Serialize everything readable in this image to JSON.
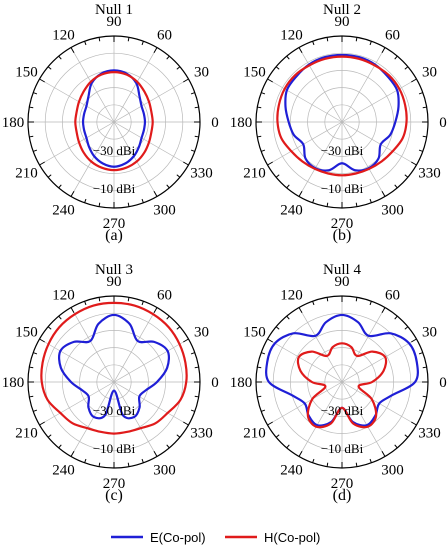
{
  "chart_data": [
    {
      "type": "polar",
      "title": "Null 1",
      "caption": "(a)",
      "angle_ticks": [
        "0",
        "30",
        "60",
        "90",
        "120",
        "150",
        "180",
        "210",
        "240",
        "270",
        "300",
        "330"
      ],
      "radial_labels": [
        "−30 dBi",
        "−10 dBi"
      ],
      "angles_deg": [
        0,
        15,
        30,
        45,
        60,
        75,
        90,
        105,
        120,
        135,
        150,
        165,
        180,
        195,
        210,
        225,
        240,
        255,
        270,
        285,
        300,
        315,
        330,
        345
      ],
      "series": [
        {
          "color": "#1f1fd6",
          "values": [
            0.36,
            0.36,
            0.37,
            0.42,
            0.52,
            0.58,
            0.6,
            0.58,
            0.52,
            0.42,
            0.37,
            0.36,
            0.36,
            0.36,
            0.37,
            0.41,
            0.46,
            0.5,
            0.52,
            0.5,
            0.46,
            0.41,
            0.37,
            0.36
          ]
        },
        {
          "color": "#e01b1b",
          "values": [
            0.45,
            0.45,
            0.47,
            0.5,
            0.54,
            0.57,
            0.58,
            0.57,
            0.54,
            0.5,
            0.47,
            0.45,
            0.45,
            0.45,
            0.47,
            0.5,
            0.53,
            0.55,
            0.56,
            0.55,
            0.53,
            0.5,
            0.47,
            0.45
          ]
        }
      ]
    },
    {
      "type": "polar",
      "title": "Null 2",
      "caption": "(b)",
      "angle_ticks": [
        "0",
        "30",
        "60",
        "90",
        "120",
        "150",
        "180",
        "210",
        "240",
        "270",
        "300",
        "330"
      ],
      "radial_labels": [
        "−30 dBi",
        "−10 dBi"
      ],
      "angles_deg": [
        0,
        15,
        30,
        45,
        60,
        75,
        90,
        105,
        120,
        135,
        150,
        165,
        180,
        195,
        210,
        225,
        240,
        255,
        270,
        285,
        300,
        315,
        330,
        345
      ],
      "series": [
        {
          "color": "#1f1fd6",
          "values": [
            0.62,
            0.68,
            0.74,
            0.75,
            0.77,
            0.78,
            0.78,
            0.78,
            0.77,
            0.75,
            0.74,
            0.68,
            0.62,
            0.58,
            0.52,
            0.6,
            0.62,
            0.58,
            0.48,
            0.58,
            0.62,
            0.6,
            0.52,
            0.58
          ]
        },
        {
          "color": "#e01b1b",
          "values": [
            0.75,
            0.76,
            0.77,
            0.77,
            0.76,
            0.76,
            0.76,
            0.76,
            0.76,
            0.77,
            0.77,
            0.76,
            0.75,
            0.73,
            0.68,
            0.65,
            0.63,
            0.62,
            0.62,
            0.62,
            0.63,
            0.65,
            0.68,
            0.73
          ]
        }
      ]
    },
    {
      "type": "polar",
      "title": "Null 3",
      "caption": "(c)",
      "angle_ticks": [
        "0",
        "30",
        "60",
        "90",
        "120",
        "150",
        "180",
        "210",
        "240",
        "270",
        "300",
        "330"
      ],
      "radial_labels": [
        "−30 dBi",
        "−10 dBi"
      ],
      "angles_deg": [
        0,
        15,
        30,
        45,
        60,
        75,
        90,
        105,
        120,
        135,
        150,
        165,
        180,
        195,
        210,
        225,
        240,
        255,
        270,
        285,
        300,
        315,
        330,
        345
      ],
      "series": [
        {
          "color": "#1f1fd6",
          "values": [
            0.5,
            0.64,
            0.72,
            0.66,
            0.55,
            0.7,
            0.78,
            0.7,
            0.55,
            0.66,
            0.72,
            0.64,
            0.5,
            0.38,
            0.34,
            0.42,
            0.47,
            0.4,
            0.1,
            0.4,
            0.47,
            0.42,
            0.34,
            0.38
          ]
        },
        {
          "color": "#e01b1b",
          "values": [
            0.84,
            0.86,
            0.88,
            0.9,
            0.91,
            0.92,
            0.92,
            0.92,
            0.91,
            0.9,
            0.88,
            0.86,
            0.84,
            0.8,
            0.72,
            0.68,
            0.62,
            0.6,
            0.6,
            0.6,
            0.62,
            0.68,
            0.72,
            0.8
          ]
        }
      ]
    },
    {
      "type": "polar",
      "title": "Null 4",
      "caption": "(d)",
      "angle_ticks": [
        "0",
        "30",
        "60",
        "90",
        "120",
        "150",
        "180",
        "210",
        "240",
        "270",
        "300",
        "330"
      ],
      "radial_labels": [
        "−30 dBi",
        "−10 dBi"
      ],
      "angles_deg": [
        0,
        15,
        30,
        45,
        60,
        75,
        90,
        105,
        120,
        135,
        150,
        165,
        180,
        195,
        210,
        225,
        240,
        255,
        270,
        285,
        300,
        315,
        330,
        345
      ],
      "series": [
        {
          "color": "#1f1fd6",
          "values": [
            0.85,
            0.9,
            0.9,
            0.8,
            0.62,
            0.72,
            0.78,
            0.72,
            0.62,
            0.8,
            0.9,
            0.9,
            0.85,
            0.6,
            0.5,
            0.55,
            0.58,
            0.48,
            0.3,
            0.48,
            0.58,
            0.55,
            0.5,
            0.6
          ]
        },
        {
          "color": "#e01b1b",
          "values": [
            0.35,
            0.5,
            0.58,
            0.5,
            0.35,
            0.42,
            0.45,
            0.42,
            0.35,
            0.5,
            0.58,
            0.5,
            0.35,
            0.2,
            0.4,
            0.56,
            0.6,
            0.5,
            0.3,
            0.5,
            0.6,
            0.56,
            0.4,
            0.2
          ]
        }
      ]
    }
  ],
  "legend": [
    {
      "label": "E(Co-pol)",
      "color": "#1f1fd6"
    },
    {
      "label": "H(Co-pol)",
      "color": "#e01b1b"
    }
  ]
}
